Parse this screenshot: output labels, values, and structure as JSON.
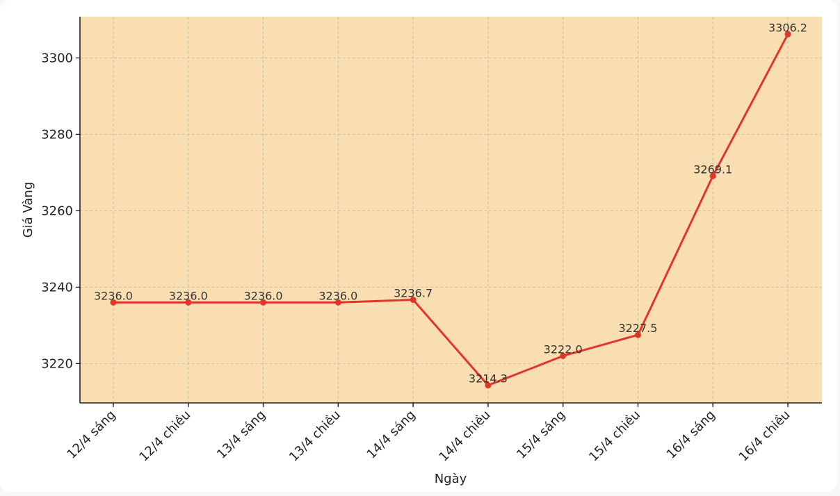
{
  "chart_data": {
    "type": "line",
    "title": "",
    "xlabel": "Ngày",
    "ylabel": "Giá Vàng",
    "categories": [
      "12/4 sáng",
      "12/4 chiều",
      "13/4 sáng",
      "13/4 chiều",
      "14/4 sáng",
      "14/4 chiều",
      "15/4 sáng",
      "15/4 chiều",
      "16/4 sáng",
      "16/4 chiều"
    ],
    "series": [
      {
        "values": [
          3236.0,
          3236.0,
          3236.0,
          3236.0,
          3236.7,
          3214.3,
          3222.0,
          3227.5,
          3269.1,
          3306.2
        ],
        "data_labels": [
          "3236.0",
          "3236.0",
          "3236.0",
          "3236.0",
          "3236.7",
          "3214.3",
          "3222.0",
          "3227.5",
          "3269.1",
          "3306.2"
        ],
        "color": "#e0362a"
      }
    ],
    "ylim": [
      3209.7,
      3310.8
    ],
    "yticks": [
      3220,
      3240,
      3260,
      3280,
      3300
    ],
    "ytick_labels": [
      "3220",
      "3240",
      "3260",
      "3280",
      "3300"
    ],
    "grid": true,
    "plot_background": "#f9deb1"
  }
}
